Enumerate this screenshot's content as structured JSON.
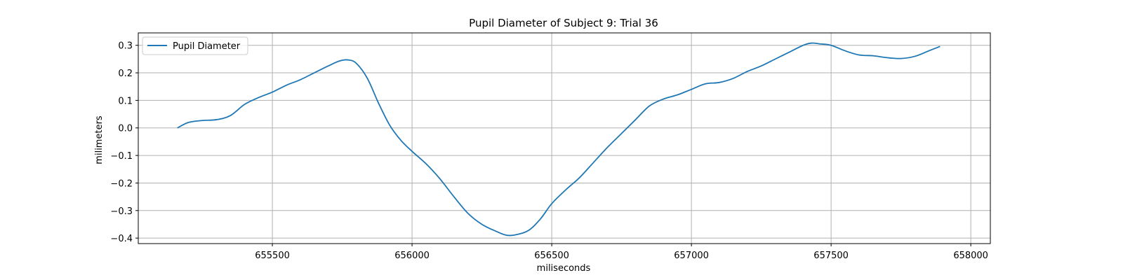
{
  "chart_data": {
    "type": "line",
    "title": "Pupil Diameter of Subject 9: Trial 36",
    "xlabel": "miliseconds",
    "ylabel": "milimeters",
    "xlim": [
      655020,
      658070
    ],
    "ylim": [
      -0.42,
      0.345
    ],
    "xticks": [
      655500,
      656000,
      656500,
      657000,
      657500,
      658000
    ],
    "yticks": [
      -0.4,
      -0.3,
      -0.2,
      -0.1,
      0.0,
      0.1,
      0.2,
      0.3
    ],
    "xtick_labels": [
      "655500",
      "656000",
      "656500",
      "657000",
      "657500",
      "658000"
    ],
    "ytick_labels": [
      "−0.4",
      "−0.3",
      "−0.2",
      "−0.1",
      "0.0",
      "0.1",
      "0.2",
      "0.3"
    ],
    "grid": true,
    "legend_position": "top-left",
    "colors": {
      "line": "#1f77b4",
      "grid": "#b0b0b0",
      "axes": "#000000"
    },
    "series": [
      {
        "name": "Pupil Diameter",
        "x": [
          655160,
          655200,
          655250,
          655300,
          655350,
          655400,
          655450,
          655500,
          655550,
          655600,
          655650,
          655700,
          655740,
          655770,
          655800,
          655840,
          655880,
          655920,
          655960,
          656000,
          656050,
          656100,
          656150,
          656200,
          656250,
          656300,
          656340,
          656380,
          656420,
          656460,
          656500,
          656550,
          656600,
          656650,
          656700,
          656750,
          656800,
          656850,
          656900,
          656950,
          657000,
          657050,
          657100,
          657150,
          657200,
          657250,
          657300,
          657350,
          657400,
          657430,
          657460,
          657500,
          657550,
          657600,
          657650,
          657700,
          657750,
          657800,
          657850,
          657890
        ],
        "y": [
          0.0,
          0.02,
          0.027,
          0.03,
          0.045,
          0.085,
          0.11,
          0.13,
          0.155,
          0.175,
          0.2,
          0.225,
          0.243,
          0.247,
          0.235,
          0.18,
          0.09,
          0.01,
          -0.045,
          -0.085,
          -0.13,
          -0.185,
          -0.25,
          -0.31,
          -0.35,
          -0.375,
          -0.39,
          -0.386,
          -0.37,
          -0.33,
          -0.275,
          -0.225,
          -0.18,
          -0.125,
          -0.07,
          -0.02,
          0.03,
          0.08,
          0.105,
          0.12,
          0.14,
          0.16,
          0.165,
          0.18,
          0.205,
          0.225,
          0.25,
          0.275,
          0.3,
          0.308,
          0.305,
          0.3,
          0.28,
          0.265,
          0.262,
          0.255,
          0.252,
          0.26,
          0.28,
          0.296
        ]
      }
    ]
  }
}
